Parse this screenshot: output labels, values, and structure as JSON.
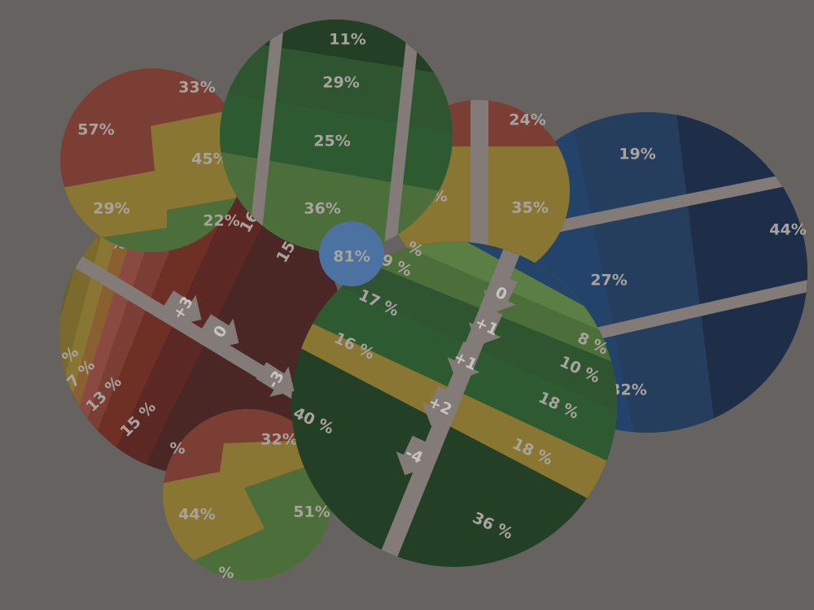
{
  "colors": {
    "background": "#656260",
    "red": "#7a3e35",
    "yellow": "#897632",
    "green": "#4c6e3a",
    "green_mid": "#2e5a32",
    "green_dark": "#233f25",
    "blue": "#24436a",
    "blue_dark": "#1f2e48",
    "slider": "#827b77",
    "center": "#4b72a0"
  },
  "board": {
    "center_circle": {
      "label": "81%"
    },
    "circle_tl": {
      "labels": [
        "57%",
        "33%",
        "45%",
        "29%",
        "22%"
      ]
    },
    "circle_top": {
      "labels": [
        "11%",
        "29%",
        "25%",
        "36%"
      ]
    },
    "circle_tr_small": {
      "labels": [
        "24%",
        "35%",
        "%"
      ]
    },
    "circle_blue": {
      "labels": [
        "19%",
        "44%",
        "27%",
        "32%"
      ]
    },
    "circle_left": {
      "labels": [
        "16",
        "15",
        "%",
        "7 %",
        "13 %",
        "15 %",
        "%"
      ]
    },
    "circle_bottom": {
      "labels": [
        "%",
        "32%",
        "44%",
        "51%",
        "%"
      ]
    },
    "circle_main": {
      "labels": [
        "%",
        "9 %",
        "17 %",
        "16 %",
        "40 %",
        "8 %",
        "10 %",
        "18 %",
        "18 %",
        "36 %"
      ]
    },
    "arrows_left": [
      "+3",
      "0",
      "-3"
    ],
    "arrows_main": [
      "0",
      "+1",
      "+1",
      "+2",
      "-4"
    ]
  }
}
